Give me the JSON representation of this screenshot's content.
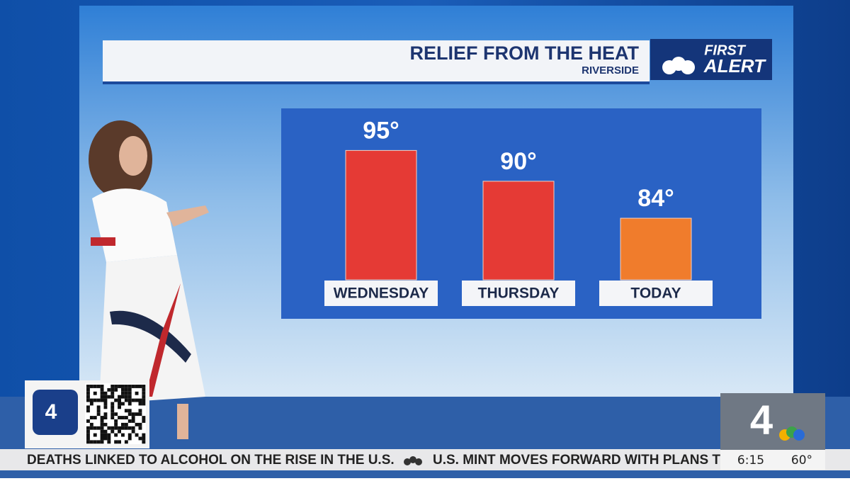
{
  "header": {
    "title": "RELIEF FROM THE HEAT",
    "subtitle": "RIVERSIDE",
    "brand": [
      "FIRST",
      "ALERT"
    ]
  },
  "chart_data": {
    "type": "bar",
    "categories": [
      "WEDNESDAY",
      "THURSDAY",
      "TODAY"
    ],
    "values": [
      95,
      90,
      84
    ],
    "value_labels": [
      "95°",
      "90°",
      "84°"
    ],
    "colors": [
      "#e53a35",
      "#e53a35",
      "#f07c2c"
    ],
    "ylim": [
      74,
      97
    ]
  },
  "station": {
    "logo": "4",
    "corner_logo": "4",
    "time": "6:15",
    "temperature": "60°"
  },
  "ticker": [
    "DEATHS LINKED TO ALCOHOL ON THE RISE IN THE U.S.",
    "U.S. MINT MOVES FORWARD WITH PLANS T"
  ]
}
